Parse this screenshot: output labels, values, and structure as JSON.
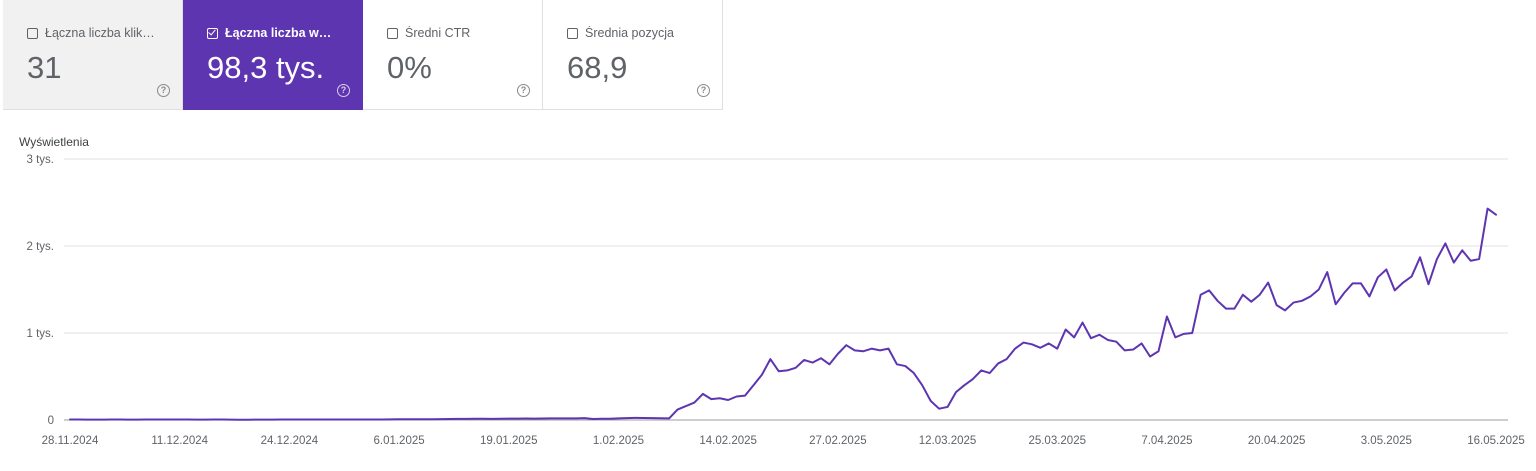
{
  "metrics": [
    {
      "label": "Łączna liczba kliknięć",
      "value": "31",
      "checked": false
    },
    {
      "label": "Łączna liczba wyświetleń",
      "value": "98,3 tys.",
      "checked": true
    },
    {
      "label": "Średni CTR",
      "value": "0%",
      "checked": false
    },
    {
      "label": "Średnia pozycja",
      "value": "68,9",
      "checked": false
    }
  ],
  "colors": {
    "accent": "#5e35b1",
    "line": "#5e35b1",
    "grid": "#e0e0e0"
  },
  "chart_data": {
    "type": "line",
    "title": "",
    "ylabel": "Wyświetlenia",
    "xlabel": "",
    "ylim": [
      0,
      3000
    ],
    "y_ticks": [
      {
        "value": 0,
        "label": "0"
      },
      {
        "value": 1000,
        "label": "1 tys."
      },
      {
        "value": 2000,
        "label": "2 tys."
      },
      {
        "value": 3000,
        "label": "3 tys."
      }
    ],
    "x_ticks": [
      "28.11.2024",
      "11.12.2024",
      "24.12.2024",
      "6.01.2025",
      "19.01.2025",
      "1.02.2025",
      "14.02.2025",
      "27.02.2025",
      "12.03.2025",
      "25.03.2025",
      "7.04.2025",
      "20.04.2025",
      "3.05.2025",
      "16.05.2025"
    ],
    "start_date": "28.11.2024",
    "grid": true,
    "legend": "none",
    "series": [
      {
        "values": [
          5,
          5,
          4,
          4,
          4,
          5,
          5,
          4,
          4,
          5,
          6,
          5,
          5,
          5,
          5,
          4,
          4,
          5,
          5,
          4,
          3,
          3,
          4,
          4,
          4,
          5,
          5,
          6,
          6,
          5,
          5,
          6,
          5,
          5,
          6,
          5,
          6,
          6,
          7,
          8,
          8,
          9,
          8,
          8,
          10,
          12,
          13,
          13,
          14,
          14,
          13,
          15,
          16,
          16,
          17,
          16,
          17,
          18,
          18,
          18,
          19,
          21,
          12,
          14,
          15,
          18,
          22,
          25,
          23,
          22,
          20,
          18,
          120,
          160,
          200,
          300,
          240,
          250,
          230,
          270,
          280,
          400,
          520,
          700,
          560,
          570,
          600,
          690,
          660,
          710,
          640,
          760,
          860,
          800,
          790,
          820,
          800,
          820,
          640,
          620,
          540,
          400,
          220,
          130,
          150,
          320,
          400,
          470,
          570,
          540,
          650,
          700,
          820,
          890,
          870,
          830,
          880,
          820,
          1040,
          950,
          1120,
          940,
          980,
          920,
          900,
          800,
          810,
          880,
          730,
          790,
          1190,
          950,
          990,
          1000,
          1440,
          1490,
          1370,
          1280,
          1280,
          1440,
          1360,
          1440,
          1580,
          1320,
          1260,
          1350,
          1370,
          1420,
          1500,
          1700,
          1330,
          1460,
          1570,
          1570,
          1420,
          1640,
          1730,
          1490,
          1580,
          1650,
          1870,
          1560,
          1850,
          2030,
          1810,
          1950,
          1830,
          1850,
          2430,
          2360
        ]
      }
    ]
  }
}
